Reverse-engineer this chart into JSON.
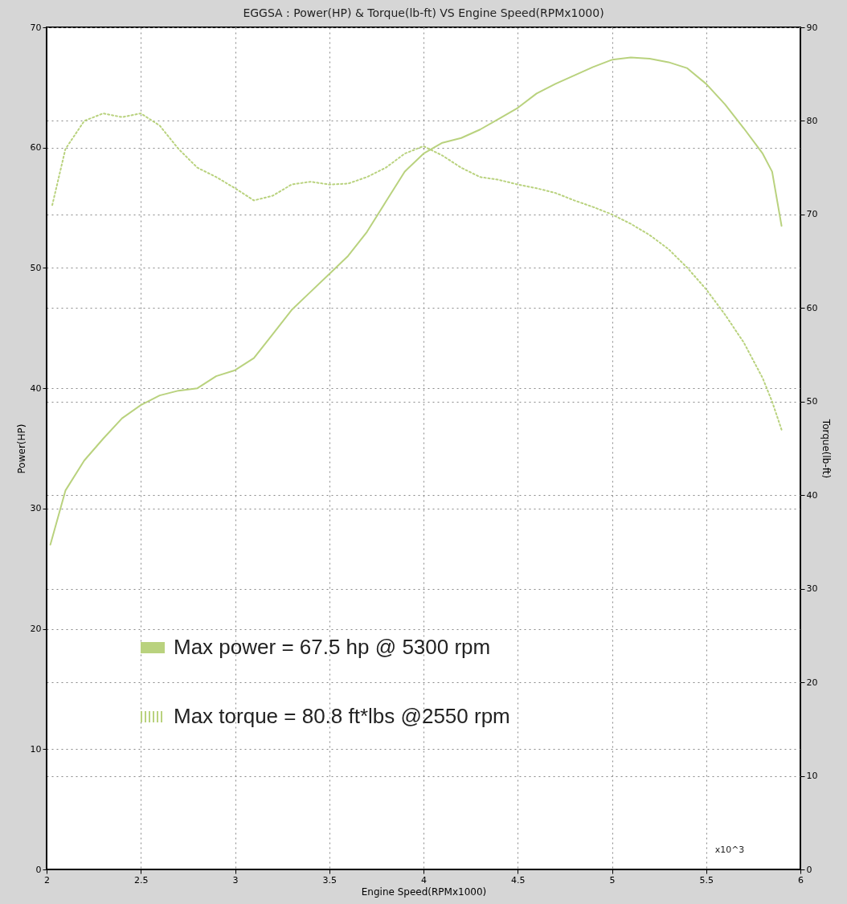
{
  "chart_data": {
    "type": "line",
    "title": "EGGSA : Power(HP) & Torque(lb-ft) VS Engine Speed(RPMx1000)",
    "xlabel": "Engine Speed(RPMx1000)",
    "ylabel": "Power(HP)",
    "y2label": "Torque(lb-ft)",
    "xlim": [
      2,
      6
    ],
    "xticks": [
      2,
      2.5,
      3,
      3.5,
      4,
      4.5,
      5,
      5.5,
      6
    ],
    "ylim": [
      0,
      70
    ],
    "yticks": [
      0,
      10,
      20,
      30,
      40,
      50,
      60,
      70
    ],
    "y2lim": [
      0,
      90
    ],
    "y2ticks": [
      0,
      10,
      20,
      30,
      40,
      50,
      60,
      70,
      80,
      90
    ],
    "grid": true,
    "legend": "bottom left",
    "marker": "none",
    "annotations": [
      "x10^3"
    ],
    "series": [
      {
        "name": "Max power = 67.5 hp @ 5300 rpm",
        "color": "#b9d27e",
        "line_style": "solid",
        "x": [
          2.02,
          2.1,
          2.2,
          2.3,
          2.4,
          2.5,
          2.6,
          2.7,
          2.8,
          2.9,
          3.0,
          3.1,
          3.2,
          3.3,
          3.4,
          3.5,
          3.6,
          3.7,
          3.8,
          3.9,
          4.0,
          4.1,
          4.2,
          4.3,
          4.4,
          4.5,
          4.6,
          4.7,
          4.8,
          4.9,
          5.0,
          5.1,
          5.2,
          5.3,
          5.4,
          5.5,
          5.6,
          5.7,
          5.8,
          5.85,
          5.9
        ],
        "values": [
          27,
          31.5,
          34,
          35.8,
          37.5,
          38.6,
          39.4,
          39.8,
          40,
          41,
          41.5,
          42.5,
          44.5,
          46.5,
          48,
          49.5,
          51,
          53,
          55.5,
          58,
          59.5,
          60.4,
          60.8,
          61.5,
          62.4,
          63.3,
          64.5,
          65.3,
          66,
          66.7,
          67.3,
          67.5,
          67.4,
          67.1,
          66.6,
          65.3,
          63.6,
          61.6,
          59.5,
          58,
          53.5
        ]
      },
      {
        "name": "Max torque = 80.8 ft*lbs @2550 rpm",
        "color": "#b9d27e",
        "line_style": "dotted",
        "axis": "y2",
        "x": [
          2.03,
          2.1,
          2.2,
          2.3,
          2.4,
          2.5,
          2.6,
          2.7,
          2.8,
          2.9,
          3.0,
          3.1,
          3.2,
          3.3,
          3.4,
          3.5,
          3.6,
          3.7,
          3.8,
          3.9,
          4.0,
          4.1,
          4.2,
          4.3,
          4.4,
          4.5,
          4.6,
          4.7,
          4.8,
          4.9,
          5.0,
          5.1,
          5.2,
          5.3,
          5.4,
          5.5,
          5.6,
          5.7,
          5.8,
          5.85,
          5.9
        ],
        "values": [
          71,
          77,
          80,
          80.8,
          80.4,
          80.8,
          79.5,
          77,
          75,
          74,
          72.8,
          71.5,
          72,
          73.2,
          73.5,
          73.2,
          73.3,
          74,
          75,
          76.5,
          77.3,
          76.3,
          75,
          74,
          73.7,
          73.2,
          72.8,
          72.3,
          71.5,
          70.8,
          70,
          69,
          67.8,
          66.3,
          64.3,
          62,
          59.3,
          56.3,
          52.5,
          50,
          47
        ]
      }
    ]
  }
}
